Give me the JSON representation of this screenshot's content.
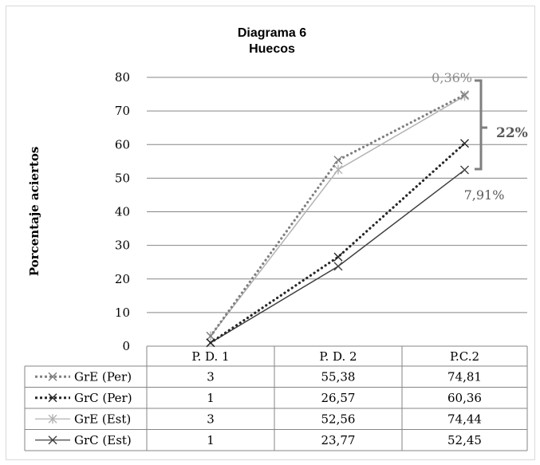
{
  "chart_data": {
    "type": "line",
    "title": "Diagrama 6",
    "subtitle": "Huecos",
    "ylabel": "Porcentaje aciertos",
    "ylim": [
      0,
      80
    ],
    "yticks": [
      0,
      10,
      20,
      30,
      40,
      50,
      60,
      70,
      80
    ],
    "categories": [
      "P. D. 1",
      "P. D. 2",
      "P.C.2"
    ],
    "grid": true,
    "legend": "data-table",
    "series": [
      {
        "name": "GrE (Per)",
        "values": [
          3,
          55.38,
          74.81
        ],
        "labels": [
          "3",
          "55,38",
          "74,81"
        ],
        "color": "#808080",
        "style": "dotted"
      },
      {
        "name": "GrC (Per)",
        "values": [
          1,
          26.57,
          60.36
        ],
        "labels": [
          "1",
          "26,57",
          "60,36"
        ],
        "color": "#262626",
        "style": "dotted"
      },
      {
        "name": "GrE (Est)",
        "values": [
          3,
          52.56,
          74.44
        ],
        "labels": [
          "3",
          "52,56",
          "74,44"
        ],
        "color": "#b3b3b3",
        "style": "solid"
      },
      {
        "name": "GrC (Est)",
        "values": [
          1,
          23.77,
          52.45
        ],
        "labels": [
          "1",
          "23,77",
          "52,45"
        ],
        "color": "#404040",
        "style": "solid"
      }
    ],
    "annotations": {
      "top_diff": "0,36%",
      "bottom_diff": "7,91%",
      "bracket_label": "22%"
    }
  }
}
